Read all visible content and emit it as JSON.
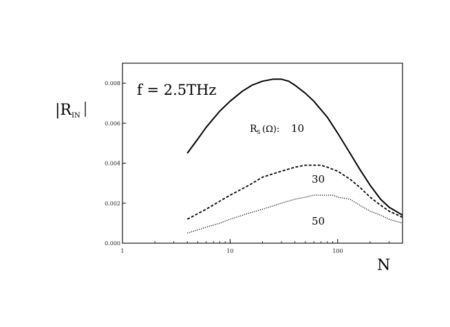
{
  "chart_data": {
    "type": "line",
    "title": "",
    "xlabel": "N",
    "ylabel": "|R",
    "ylabel_sub": "IN",
    "x_scale": "log",
    "xlim": [
      1,
      400
    ],
    "ylim": [
      0,
      0.009
    ],
    "x_ticks": [
      {
        "value": 1,
        "label": "1"
      },
      {
        "value": 10,
        "label": "10"
      },
      {
        "value": 100,
        "label": "100"
      }
    ],
    "y_ticks": [
      {
        "value": 0,
        "label": "0.000"
      },
      {
        "value": 0.002,
        "label": "0.002"
      },
      {
        "value": 0.004,
        "label": "0.004"
      },
      {
        "value": 0.006,
        "label": "0.006"
      },
      {
        "value": 0.008,
        "label": "0.008"
      }
    ],
    "grid": false,
    "annotations": {
      "frequency": "f = 2.5THz",
      "rs_prefix": "R",
      "rs_sub": "S",
      "rs_unit": "(Ω):"
    },
    "series": [
      {
        "label": "10",
        "style": "solid",
        "color": "#000000",
        "x": [
          4,
          5,
          6,
          8,
          10,
          13,
          16,
          20,
          25,
          30,
          35,
          40,
          50,
          60,
          80,
          100,
          130,
          160,
          200,
          250,
          300,
          400
        ],
        "y": [
          0.0045,
          0.0052,
          0.0058,
          0.0066,
          0.0071,
          0.0076,
          0.0079,
          0.0081,
          0.0082,
          0.0082,
          0.0081,
          0.0079,
          0.0075,
          0.0071,
          0.0063,
          0.0055,
          0.0045,
          0.0037,
          0.0029,
          0.0022,
          0.0018,
          0.0014
        ]
      },
      {
        "label": "30",
        "style": "dashed",
        "color": "#000000",
        "x": [
          4,
          6,
          8,
          10,
          15,
          20,
          30,
          40,
          50,
          60,
          70,
          80,
          100,
          130,
          160,
          200,
          250,
          300,
          400
        ],
        "y": [
          0.0012,
          0.0017,
          0.0021,
          0.0024,
          0.0029,
          0.0033,
          0.0036,
          0.0038,
          0.0039,
          0.0039,
          0.0039,
          0.0038,
          0.0036,
          0.0032,
          0.0028,
          0.0023,
          0.0019,
          0.0016,
          0.0013
        ]
      },
      {
        "label": "50",
        "style": "dotted",
        "color": "#000000",
        "x": [
          4,
          6,
          8,
          10,
          15,
          20,
          30,
          40,
          50,
          60,
          70,
          80,
          90,
          100,
          130,
          160,
          200,
          250,
          300,
          400
        ],
        "y": [
          0.0005,
          0.0008,
          0.001,
          0.0012,
          0.0015,
          0.0017,
          0.002,
          0.0022,
          0.0023,
          0.0024,
          0.0024,
          0.0024,
          0.0024,
          0.0023,
          0.0022,
          0.0019,
          0.0016,
          0.0014,
          0.0012,
          0.001
        ]
      }
    ]
  }
}
